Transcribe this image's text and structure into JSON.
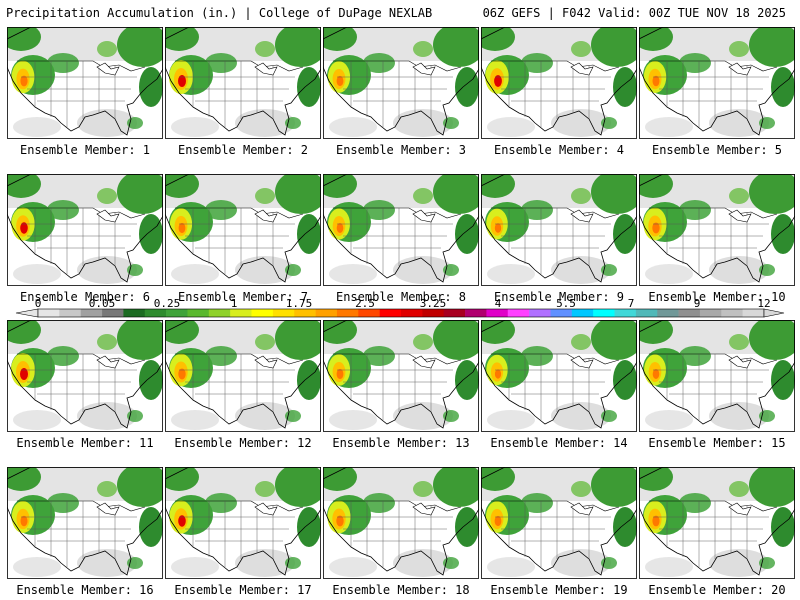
{
  "header": {
    "left": "Precipitation Accumulation (in.) | College of DuPage NEXLAB",
    "right": "06Z GEFS | F042 Valid: 00Z TUE NOV 18 2025"
  },
  "members": [
    {
      "label": "Ensemble Member: 1",
      "intensity": 0.8
    },
    {
      "label": "Ensemble Member: 2",
      "intensity": 1.0
    },
    {
      "label": "Ensemble Member: 3",
      "intensity": 0.7
    },
    {
      "label": "Ensemble Member: 4",
      "intensity": 0.95
    },
    {
      "label": "Ensemble Member: 5",
      "intensity": 0.75
    },
    {
      "label": "Ensemble Member: 6",
      "intensity": 0.9
    },
    {
      "label": "Ensemble Member: 7",
      "intensity": 0.7
    },
    {
      "label": "Ensemble Member: 8",
      "intensity": 0.65
    },
    {
      "label": "Ensemble Member: 9",
      "intensity": 0.6
    },
    {
      "label": "Ensemble Member: 10",
      "intensity": 0.85
    },
    {
      "label": "Ensemble Member: 11",
      "intensity": 1.0
    },
    {
      "label": "Ensemble Member: 12",
      "intensity": 0.85
    },
    {
      "label": "Ensemble Member: 13",
      "intensity": 0.7
    },
    {
      "label": "Ensemble Member: 14",
      "intensity": 0.55
    },
    {
      "label": "Ensemble Member: 15",
      "intensity": 0.65
    },
    {
      "label": "Ensemble Member: 16",
      "intensity": 0.75
    },
    {
      "label": "Ensemble Member: 17",
      "intensity": 0.9
    },
    {
      "label": "Ensemble Member: 18",
      "intensity": 0.85
    },
    {
      "label": "Ensemble Member: 19",
      "intensity": 0.7
    },
    {
      "label": "Ensemble Member: 20",
      "intensity": 0.8
    }
  ],
  "colorbar": {
    "labels": [
      "0",
      "0.05",
      "0.25",
      "1",
      "1.75",
      "2.5",
      "3.25",
      "4",
      "5.5",
      "7",
      "9",
      "12"
    ],
    "colors": [
      "#e6e6e6",
      "#c8c8c8",
      "#a0a0a0",
      "#787878",
      "#1c6b22",
      "#2e8b2e",
      "#3fa33a",
      "#5ab82e",
      "#8fd12a",
      "#d8ee1e",
      "#ffff00",
      "#ffe000",
      "#ffc000",
      "#ffa000",
      "#ff7800",
      "#ff4800",
      "#ff0000",
      "#e00000",
      "#c00000",
      "#a80020",
      "#b0006e",
      "#e000c8",
      "#ff40ff",
      "#b070ff",
      "#6090ff",
      "#00c8ff",
      "#00ffff",
      "#40d8d8",
      "#50b8b8",
      "#709898",
      "#909090",
      "#a8a8a8",
      "#c0c0c0",
      "#d8d8d8"
    ]
  }
}
